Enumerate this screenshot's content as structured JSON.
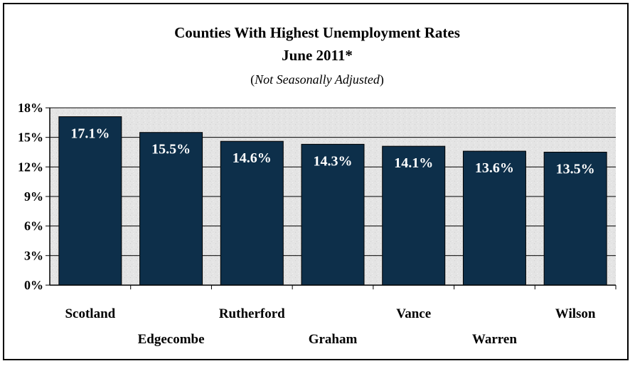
{
  "chart_data": {
    "type": "bar",
    "title": "Counties With Highest Unemployment Rates",
    "subtitle": "June 2011*",
    "note": {
      "open": "(",
      "text": "Not Seasonally Adjusted",
      "close": ")"
    },
    "categories": [
      "Scotland",
      "Edgecombe",
      "Rutherford",
      "Graham",
      "Vance",
      "Warren",
      "Wilson"
    ],
    "values": [
      17.1,
      15.5,
      14.6,
      14.3,
      14.1,
      13.6,
      13.5
    ],
    "data_labels": [
      "17.1%",
      "15.5%",
      "14.6%",
      "14.3%",
      "14.1%",
      "13.6%",
      "13.5%"
    ],
    "ylim": [
      0,
      18
    ],
    "yticks": [
      0,
      3,
      6,
      9,
      12,
      15,
      18
    ],
    "ytick_labels": [
      "0%",
      "3%",
      "6%",
      "9%",
      "12%",
      "15%",
      "18%"
    ],
    "xlabel": "",
    "ylabel": "",
    "grid": true,
    "legend": "none",
    "colors": {
      "bar": "#0d2f4a",
      "bar_border": "#000000",
      "plot_background": "#e6e6e6",
      "grid": "#000000",
      "data_label": "#ffffff"
    }
  }
}
